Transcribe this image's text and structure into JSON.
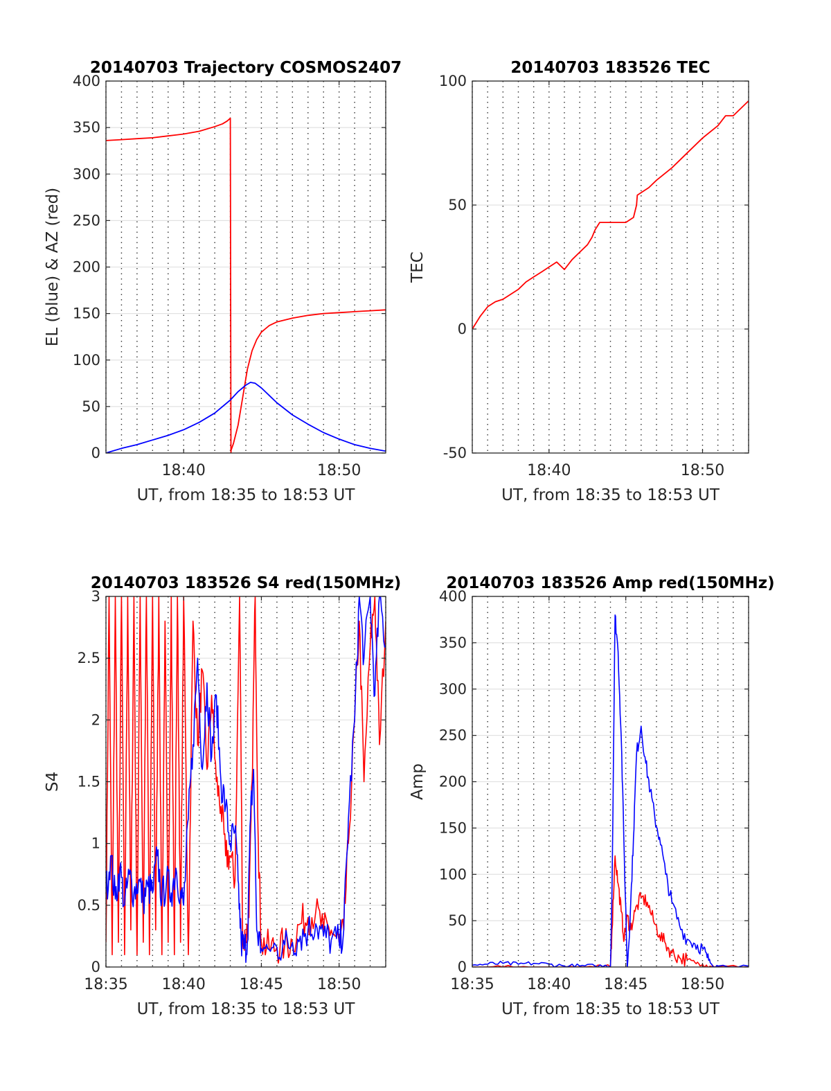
{
  "chart_data": [
    {
      "type": "line",
      "title": "20140703 Trajectory COSMOS2407",
      "xlabel": "UT, from 18:35 to 18:53 UT",
      "ylabel": "EL (blue) & AZ (red)",
      "xlim": [
        0,
        18
      ],
      "ylim": [
        0,
        400
      ],
      "xticks": [
        5,
        15
      ],
      "xticklabels": [
        "18:40",
        "18:50"
      ],
      "yticks": [
        0,
        50,
        100,
        150,
        200,
        250,
        300,
        350,
        400
      ],
      "grid": true,
      "series": [
        {
          "color": "#ff0000",
          "x": [
            0,
            1,
            2,
            3,
            4,
            5,
            6,
            7,
            7.5,
            7.8,
            8.0,
            8.04,
            8.05,
            8.2,
            8.5,
            8.8,
            9.1,
            9.4,
            9.7,
            10.0,
            10.5,
            11,
            12,
            13,
            14,
            15,
            16,
            17,
            18
          ],
          "y": [
            336,
            337,
            338,
            339,
            341,
            343,
            346,
            351,
            354,
            357,
            360,
            0,
            3,
            10,
            30,
            60,
            90,
            110,
            122,
            130,
            137,
            141,
            145,
            148,
            150,
            151,
            152,
            153,
            154
          ]
        },
        {
          "color": "#0000ff",
          "x": [
            0,
            1,
            2,
            3,
            4,
            5,
            6,
            7,
            8,
            8.5,
            9,
            9.3,
            9.6,
            10,
            10.5,
            11,
            12,
            13,
            14,
            15,
            16,
            17,
            18
          ],
          "y": [
            0,
            5,
            9,
            14,
            19,
            25,
            33,
            43,
            57,
            66,
            73,
            76,
            75,
            70,
            62,
            54,
            41,
            31,
            22,
            15,
            9,
            5,
            2
          ]
        }
      ]
    },
    {
      "type": "line",
      "title": "20140703 183526 TEC",
      "xlabel": "UT, from 18:35 to 18:53 UT",
      "ylabel": "TEC",
      "xlim": [
        0,
        18
      ],
      "ylim": [
        -50,
        100
      ],
      "xticks": [
        5,
        15
      ],
      "xticklabels": [
        "18:40",
        "18:50"
      ],
      "yticks": [
        -50,
        0,
        50,
        100
      ],
      "grid": true,
      "series": [
        {
          "color": "#ff0000",
          "x": [
            0,
            0.5,
            1,
            1.5,
            2,
            2.5,
            3,
            3.5,
            4,
            4.5,
            5,
            5.5,
            6,
            6.5,
            7,
            7.5,
            7.8,
            8,
            8.3,
            8.6,
            9,
            9.5,
            10,
            10.5,
            10.7,
            10.75,
            11,
            11.5,
            12,
            13,
            14,
            15,
            16,
            16.5,
            17,
            17.5,
            18
          ],
          "y": [
            0,
            5,
            9,
            11,
            12,
            14,
            16,
            19,
            21,
            23,
            25,
            27,
            24,
            28,
            31,
            34,
            37,
            40,
            43,
            43,
            43,
            43,
            43,
            45,
            50,
            54,
            55,
            57,
            60,
            65,
            71,
            77,
            82,
            86,
            86,
            89,
            92
          ]
        }
      ]
    },
    {
      "type": "line",
      "title": "20140703 183526 S4 red(150MHz)",
      "xlabel": "UT, from 18:35 to 18:53 UT",
      "ylabel": "S4",
      "xlim": [
        0,
        18
      ],
      "ylim": [
        0,
        3
      ],
      "xticks": [
        0,
        5,
        10,
        15
      ],
      "xticklabels": [
        "18:35",
        "18:40",
        "18:45",
        "18:50"
      ],
      "yticks": [
        0,
        0.5,
        1,
        1.5,
        2,
        2.5,
        3
      ],
      "grid": true,
      "series": [
        {
          "color": "#ff0000",
          "x": [
            0,
            0.2,
            0.4,
            0.6,
            0.8,
            1.0,
            1.2,
            1.4,
            1.6,
            1.8,
            2.0,
            2.2,
            2.4,
            2.6,
            2.8,
            3.0,
            3.2,
            3.4,
            3.6,
            3.8,
            4.0,
            4.2,
            4.4,
            4.6,
            4.8,
            5.0,
            5.3,
            5.6,
            5.9,
            6.2,
            6.5,
            6.8,
            7.1,
            7.4,
            7.7,
            8.0,
            8.3,
            8.6,
            8.8,
            9.0,
            9.2,
            9.4,
            9.6,
            9.8,
            10.0,
            10.5,
            11,
            11.5,
            12,
            12.5,
            13,
            13.5,
            14,
            14.5,
            15,
            15.3,
            15.6,
            16,
            16.3,
            16.6,
            17,
            17.3,
            17.6,
            18
          ],
          "y": [
            0.2,
            3.0,
            0.1,
            3.0,
            0.2,
            3.0,
            0.1,
            3.0,
            0.3,
            3.0,
            0.1,
            3.0,
            0.2,
            3.0,
            0.1,
            3.0,
            0.3,
            3.0,
            0.1,
            2.8,
            0.2,
            3.0,
            0.1,
            3.0,
            0.2,
            3.0,
            0.1,
            2.8,
            1.8,
            2.4,
            1.6,
            2.2,
            1.5,
            1.3,
            0.9,
            0.9,
            0.7,
            3.0,
            0.2,
            0.25,
            0.4,
            1.5,
            3.0,
            1.0,
            0.2,
            0.15,
            0.16,
            0.18,
            0.2,
            0.35,
            0.4,
            0.45,
            0.3,
            0.3,
            0.2,
            0.3,
            1.0,
            2.0,
            2.8,
            1.5,
            2.6,
            3.0,
            1.8,
            2.8
          ]
        },
        {
          "color": "#0000ff",
          "x": [
            0,
            0.3,
            0.6,
            0.9,
            1.2,
            1.5,
            1.8,
            2.1,
            2.4,
            2.7,
            3.0,
            3.3,
            3.6,
            3.9,
            4.2,
            4.5,
            4.8,
            5.0,
            5.3,
            5.6,
            5.9,
            6.2,
            6.5,
            6.8,
            7.1,
            7.4,
            7.7,
            8.0,
            8.3,
            8.5,
            8.7,
            8.9,
            9.1,
            9.3,
            9.5,
            9.7,
            10.0,
            10.5,
            11,
            11.5,
            12,
            12.5,
            13,
            13.5,
            14,
            14.5,
            15,
            15.3,
            15.6,
            16,
            16.3,
            16.6,
            17,
            17.3,
            17.6,
            18
          ],
          "y": [
            0.6,
            0.9,
            0.55,
            0.8,
            0.5,
            0.75,
            0.6,
            0.7,
            0.55,
            0.65,
            0.6,
            0.9,
            0.55,
            0.7,
            0.6,
            0.8,
            0.6,
            0.5,
            1.2,
            1.8,
            2.5,
            1.6,
            2.3,
            1.7,
            2.2,
            1.5,
            1.3,
            1.0,
            1.1,
            0.7,
            0.2,
            0.15,
            0.2,
            1.2,
            1.6,
            0.3,
            0.15,
            0.14,
            0.16,
            0.18,
            0.2,
            0.25,
            0.3,
            0.35,
            0.25,
            0.22,
            0.2,
            0.3,
            1.2,
            2.0,
            3.0,
            2.5,
            3.0,
            2.2,
            3.0,
            2.6
          ]
        }
      ]
    },
    {
      "type": "line",
      "title": "20140703 183526 Amp red(150MHz)",
      "xlabel": "UT, from 18:35 to 18:53 UT",
      "ylabel": "Amp",
      "xlim": [
        0,
        18
      ],
      "ylim": [
        0,
        400
      ],
      "xticks": [
        0,
        5,
        10,
        15
      ],
      "xticklabels": [
        "18:35",
        "18:40",
        "18:45",
        "18:50"
      ],
      "yticks": [
        0,
        50,
        100,
        150,
        200,
        250,
        300,
        350,
        400
      ],
      "grid": true,
      "series": [
        {
          "color": "#ff0000",
          "x": [
            0,
            2,
            4,
            6,
            8,
            9,
            9.1,
            9.3,
            9.5,
            9.7,
            9.9,
            10.1,
            10.3,
            10.6,
            11,
            11.4,
            11.8,
            12.2,
            12.6,
            13,
            13.5,
            14,
            14.5,
            15,
            15.5,
            16,
            18
          ],
          "y": [
            0,
            0,
            0,
            0,
            0,
            0,
            40,
            120,
            90,
            60,
            30,
            55,
            40,
            60,
            75,
            70,
            50,
            35,
            25,
            15,
            10,
            8,
            5,
            3,
            1,
            0,
            0
          ]
        },
        {
          "color": "#0000ff",
          "x": [
            0,
            1,
            2,
            3,
            4,
            5,
            6,
            7,
            8,
            9,
            9.1,
            9.3,
            9.5,
            9.7,
            9.9,
            10.1,
            10.3,
            10.5,
            10.7,
            11.0,
            11.3,
            11.6,
            11.9,
            12.2,
            12.6,
            13.0,
            13.5,
            14,
            14.5,
            15,
            15.3,
            15.6,
            16,
            18
          ],
          "y": [
            2,
            3,
            4,
            3,
            4,
            3,
            1,
            1,
            1,
            1,
            80,
            380,
            340,
            250,
            120,
            0,
            60,
            140,
            230,
            260,
            220,
            190,
            160,
            140,
            100,
            70,
            45,
            30,
            25,
            20,
            10,
            3,
            1,
            1
          ]
        }
      ]
    }
  ]
}
